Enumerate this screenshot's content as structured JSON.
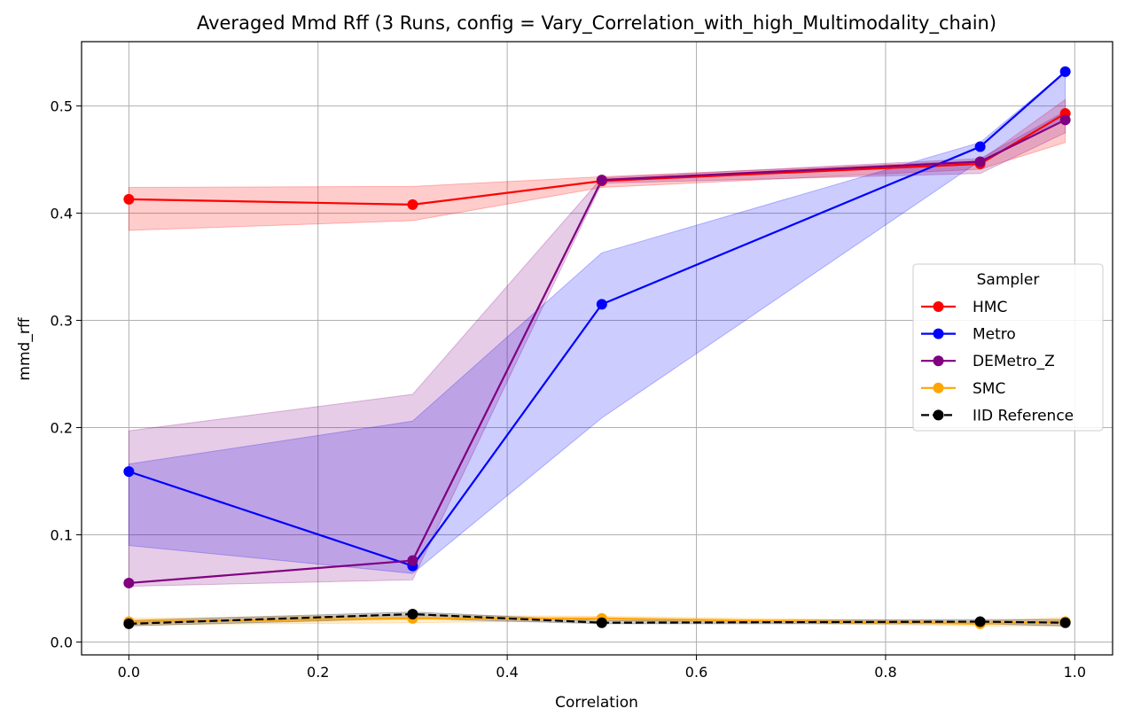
{
  "chart_data": {
    "type": "line",
    "title": "Averaged Mmd Rff (3 Runs, config = Vary_Correlation_with_high_Multimodality_chain)",
    "xlabel": "Correlation",
    "ylabel": "mmd_rff",
    "xlim": [
      -0.05,
      1.04
    ],
    "ylim": [
      -0.012,
      0.56
    ],
    "xticks": [
      0.0,
      0.2,
      0.4,
      0.6,
      0.8,
      1.0
    ],
    "xtick_labels": [
      "0.0",
      "0.2",
      "0.4",
      "0.6",
      "0.8",
      "1.0"
    ],
    "yticks": [
      0.0,
      0.1,
      0.2,
      0.3,
      0.4,
      0.5
    ],
    "ytick_labels": [
      "0.0",
      "0.1",
      "0.2",
      "0.3",
      "0.4",
      "0.5"
    ],
    "grid": true,
    "legend": {
      "title": "Sampler",
      "placement": "center-right"
    },
    "x": [
      0.0,
      0.3,
      0.5,
      0.9,
      0.99
    ],
    "series": [
      {
        "name": "HMC",
        "color": "#ff0000",
        "dashed": false,
        "values": [
          0.413,
          0.408,
          0.43,
          0.446,
          0.493
        ],
        "lower": [
          0.384,
          0.393,
          0.424,
          0.441,
          0.466
        ],
        "upper": [
          0.424,
          0.425,
          0.434,
          0.449,
          0.506
        ]
      },
      {
        "name": "Metro",
        "color": "#0000ff",
        "dashed": false,
        "values": [
          0.159,
          0.071,
          0.315,
          0.462,
          0.532
        ],
        "lower": [
          0.09,
          0.064,
          0.209,
          0.449,
          0.487
        ],
        "upper": [
          0.166,
          0.206,
          0.363,
          0.466,
          0.532
        ]
      },
      {
        "name": "DEMetro_Z",
        "color": "#800080",
        "dashed": false,
        "values": [
          0.055,
          0.076,
          0.431,
          0.448,
          0.487
        ],
        "lower": [
          0.052,
          0.058,
          0.428,
          0.437,
          0.475
        ],
        "upper": [
          0.197,
          0.231,
          0.433,
          0.451,
          0.495
        ]
      },
      {
        "name": "SMC",
        "color": "#ffa500",
        "dashed": false,
        "values": [
          0.019,
          0.022,
          0.022,
          0.017,
          0.019
        ],
        "lower": [
          0.016,
          0.018,
          0.02,
          0.015,
          0.015
        ],
        "upper": [
          0.022,
          0.025,
          0.024,
          0.019,
          0.023
        ]
      },
      {
        "name": "IID Reference",
        "color": "#000000",
        "dashed": true,
        "values": [
          0.017,
          0.026,
          0.018,
          0.019,
          0.018
        ],
        "lower": [
          0.015,
          0.022,
          0.017,
          0.017,
          0.015
        ],
        "upper": [
          0.02,
          0.028,
          0.02,
          0.021,
          0.021
        ]
      }
    ]
  }
}
